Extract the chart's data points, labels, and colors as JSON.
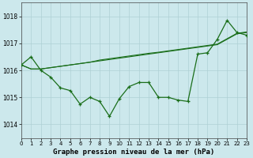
{
  "title": "Graphe pression niveau de la mer (hPa)",
  "bg_color": "#cce8ec",
  "grid_color": "#aed0d4",
  "line_color": "#1a6e1a",
  "ylim": [
    1013.5,
    1018.5
  ],
  "xlim": [
    0,
    23
  ],
  "yticks": [
    1014,
    1015,
    1016,
    1017,
    1018
  ],
  "xticks": [
    0,
    1,
    2,
    3,
    4,
    5,
    6,
    7,
    8,
    9,
    10,
    11,
    12,
    13,
    14,
    15,
    16,
    17,
    18,
    19,
    20,
    21,
    22,
    23
  ],
  "x_main": [
    0,
    1,
    2,
    3,
    4,
    5,
    6,
    7,
    8,
    9,
    10,
    11,
    12,
    13,
    14,
    15,
    16,
    17,
    18,
    19,
    20,
    21,
    22,
    23
  ],
  "series_volatile": [
    1016.2,
    1016.5,
    1016.0,
    1015.75,
    1015.35,
    1015.25,
    1014.75,
    1015.0,
    1014.85,
    1014.3,
    1014.95,
    1015.4,
    1015.55,
    1015.55,
    1015.0,
    1015.0,
    1014.9,
    1014.85,
    1016.6,
    1016.65,
    1017.15,
    1017.85,
    1017.4,
    1017.3
  ],
  "series_trend1": [
    1016.2,
    1016.05,
    1016.05,
    1016.1,
    1016.15,
    1016.2,
    1016.25,
    1016.3,
    1016.35,
    1016.4,
    1016.45,
    1016.5,
    1016.55,
    1016.6,
    1016.65,
    1016.7,
    1016.75,
    1016.8,
    1016.85,
    1016.9,
    1016.95,
    1017.15,
    1017.35,
    1017.4
  ],
  "series_trend2": [
    1016.2,
    1016.05,
    1016.05,
    1016.1,
    1016.15,
    1016.2,
    1016.25,
    1016.3,
    1016.38,
    1016.43,
    1016.48,
    1016.53,
    1016.58,
    1016.63,
    1016.67,
    1016.72,
    1016.77,
    1016.82,
    1016.87,
    1016.92,
    1016.97,
    1017.17,
    1017.37,
    1017.42
  ]
}
